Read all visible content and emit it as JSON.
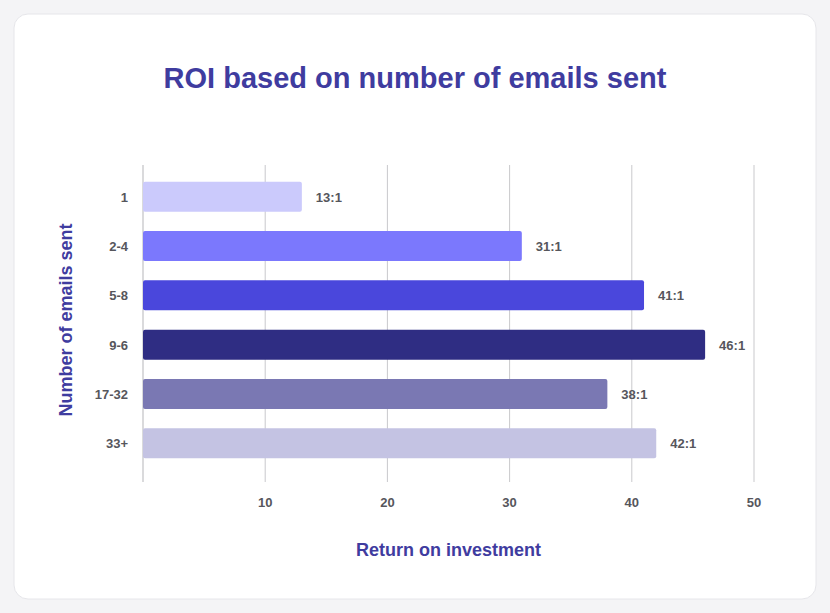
{
  "chart_data": {
    "type": "bar",
    "title": "ROI based on number of emails sent",
    "orientation": "horizontal",
    "x_label": "Return on investment",
    "y_label": "Number of emails sent",
    "categories": [
      "1",
      "2-4",
      "5-8",
      "9-6",
      "17-32",
      "33+"
    ],
    "values": [
      13,
      31,
      41,
      46,
      38,
      42
    ],
    "value_labels": [
      "13:1",
      "31:1",
      "41:1",
      "46:1",
      "38:1",
      "42:1"
    ],
    "colors": [
      "#cbcafc",
      "#7b78fd",
      "#4a47dc",
      "#2f2d83",
      "#7a78b3",
      "#c4c3e3"
    ],
    "xlim": [
      0,
      50
    ],
    "xticks": [
      10,
      20,
      30,
      40,
      50
    ],
    "grid": true,
    "data_labels": true
  }
}
